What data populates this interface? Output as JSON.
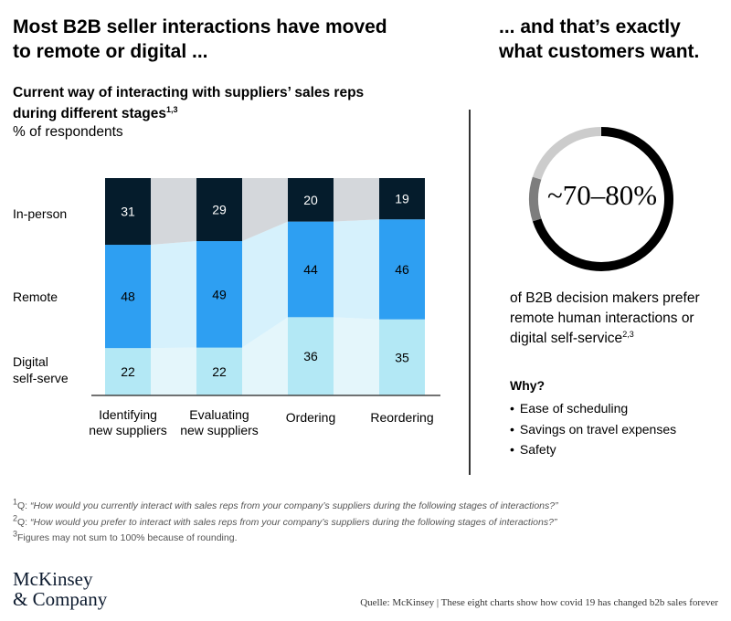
{
  "headline_left": [
    "Most B2B seller interactions have moved",
    "to remote or digital ..."
  ],
  "headline_right": [
    "... and that’s exactly",
    "what customers want."
  ],
  "chart_title_lines": [
    "Current way of interacting with suppliers’ sales reps",
    "during different stages"
  ],
  "chart_title_sup": "1,3",
  "chart_unit": "% of respondents",
  "row_labels": {
    "in_person": "In-person",
    "remote": "Remote",
    "digital": [
      "Digital",
      "self-serve"
    ]
  },
  "chart_data": {
    "type": "bar",
    "stacked": true,
    "unit": "% of respondents",
    "categories": [
      [
        "Identifying",
        "new suppliers"
      ],
      [
        "Evaluating",
        "new suppliers"
      ],
      [
        "Ordering"
      ],
      [
        "Reordering"
      ]
    ],
    "series": [
      {
        "name": "Digital self-serve",
        "values": [
          22,
          22,
          36,
          35
        ]
      },
      {
        "name": "Remote",
        "values": [
          48,
          49,
          44,
          46
        ]
      },
      {
        "name": "In-person",
        "values": [
          31,
          29,
          20,
          19
        ]
      }
    ],
    "colors": {
      "Digital self-serve": "#b3e8f5",
      "Remote": "#2e9ff2",
      "In-person": "#051c2c",
      "band_digital": "#e4f6fb",
      "band_remote": "#d6f1fc",
      "band_in_person": "#d4d7db"
    },
    "ylim": [
      0,
      100
    ],
    "grid": false
  },
  "donut": {
    "label": "~70–80%",
    "range": [
      70,
      80
    ],
    "colors": {
      "main": "#000000",
      "secondary": "#7d7d7d",
      "rest": "#cccccc"
    }
  },
  "right_desc_lines": [
    "of B2B decision makers prefer",
    "remote human interactions or",
    "digital self-service"
  ],
  "right_desc_sup": "2,3",
  "why_title": "Why?",
  "why_items": [
    "Ease of scheduling",
    "Savings on travel expenses",
    "Safety"
  ],
  "footnotes": [
    {
      "sup": "1",
      "prefix": "Q: ",
      "text": "“How would you currently interact with sales reps from your company’s suppliers during the following stages of interactions?”"
    },
    {
      "sup": "2",
      "prefix": "Q: ",
      "text": "“How would you prefer to interact with sales reps from your company’s suppliers during the following stages of interactions?”"
    },
    {
      "sup": "3",
      "prefix": "",
      "text": "Figures may not sum to 100% because of rounding."
    }
  ],
  "logo_lines": [
    "McKinsey",
    "& Company"
  ],
  "source": "Quelle: McKinsey | These eight charts show how covid 19 has changed b2b sales forever"
}
